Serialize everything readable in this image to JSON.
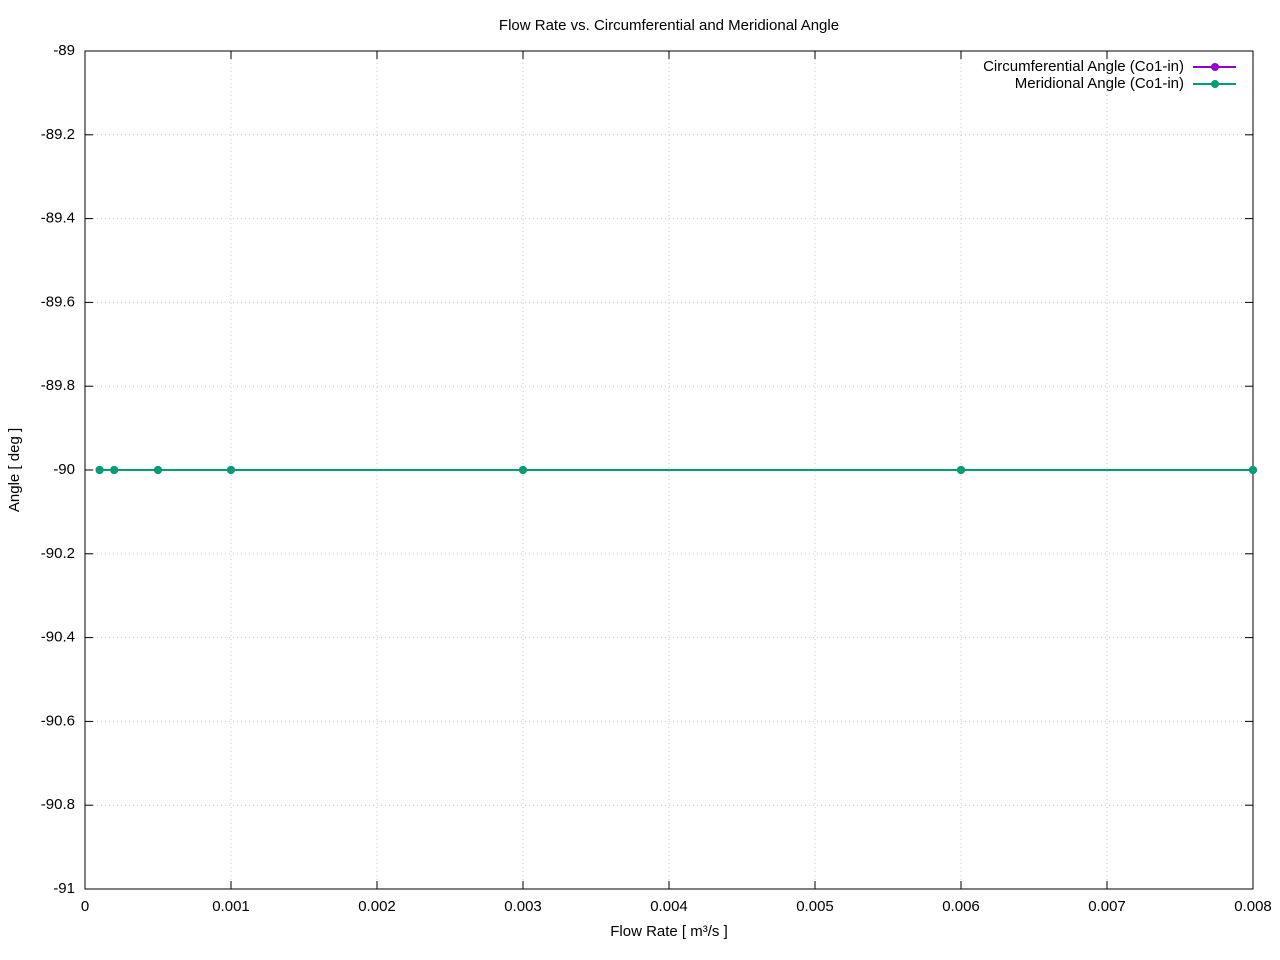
{
  "chart_data": {
    "type": "line",
    "title": "Flow Rate vs. Circumferential and Meridional Angle",
    "x_label": "Flow Rate [ m³/s ]",
    "y_label": "Angle [ deg ]",
    "x": [
      0.0001,
      0.0002,
      0.0005,
      0.001,
      0.003,
      0.006,
      0.008
    ],
    "series": [
      {
        "name": "Circumferential Angle (Co1-in)",
        "color": "#9400d3",
        "values": [
          -90,
          -90,
          -90,
          -90,
          -90,
          -90,
          -90
        ]
      },
      {
        "name": "Meridional Angle (Co1-in)",
        "color": "#009e73",
        "values": [
          -90,
          -90,
          -90,
          -90,
          -90,
          -90,
          -90
        ]
      }
    ],
    "xlim": [
      0,
      0.008
    ],
    "xticks": [
      0,
      0.001,
      0.002,
      0.003,
      0.004,
      0.005,
      0.006,
      0.007,
      0.008
    ],
    "ylim": [
      -91,
      -89
    ],
    "yticks": [
      -89,
      -89.2,
      -89.4,
      -89.6,
      -89.8,
      -90,
      -90.2,
      -90.4,
      -90.6,
      -90.8,
      -91
    ],
    "grid": true,
    "legend": "top-right"
  }
}
